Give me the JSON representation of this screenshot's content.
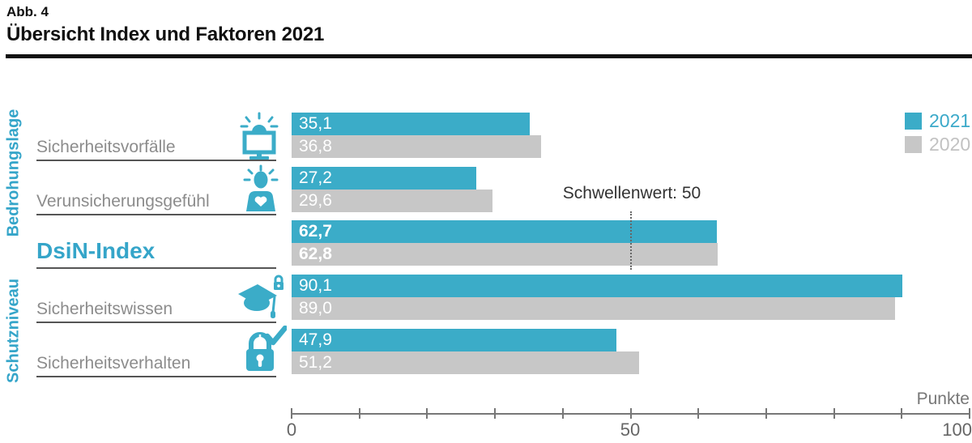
{
  "figure": {
    "number": "Abb. 4",
    "title": "Übersicht Index und Faktoren 2021"
  },
  "groups": {
    "top": "Bedrohungslage",
    "bottom": "Schutzniveau"
  },
  "threshold": {
    "label": "Schwellenwert: 50",
    "value": 50
  },
  "axis": {
    "min": 0,
    "max": 100,
    "tick_step": 10,
    "labels": {
      "start": "0",
      "mid": "50",
      "end": "100"
    },
    "unit": "Punkte"
  },
  "legend": {
    "position": "top-right",
    "items": [
      {
        "label": "2021",
        "color": "#3BACC8"
      },
      {
        "label": "2020",
        "color": "#C7C7C7"
      }
    ]
  },
  "icons": {
    "sicherheitsvorfaelle": "alarm-monitor-icon",
    "verunsicherungsgefuehl": "anxious-person-icon",
    "sicherheitswissen": "graduation-cap-lock-icon",
    "sicherheitsverhalten": "padlock-check-icon"
  },
  "colors": {
    "accent_teal": "#3BACC8",
    "bar_2020_gray": "#C7C7C7",
    "category_label_gray": "#8C8C8C",
    "axis_gray": "#777777",
    "header_rule": "#111111"
  },
  "chart_data": {
    "type": "bar",
    "orientation": "horizontal",
    "title": "Übersicht Index und Faktoren 2021",
    "categories": [
      "Sicherheitsvorfälle",
      "Verunsicherungsgefühl",
      "DsiN-Index",
      "Sicherheitswissen",
      "Sicherheitsverhalten"
    ],
    "series": [
      {
        "name": "2021",
        "color": "#3BACC8",
        "values": [
          35.1,
          27.2,
          62.7,
          90.1,
          47.9
        ]
      },
      {
        "name": "2020",
        "color": "#C7C7C7",
        "values": [
          36.8,
          29.6,
          62.8,
          89.0,
          51.2
        ]
      }
    ],
    "value_labels_inside_bars": true,
    "decimal_format": "comma",
    "emphasized_category": "DsiN-Index",
    "xlabel": "Punkte",
    "xlim": [
      0,
      100
    ],
    "tick_step": 10,
    "grid": false,
    "legend_position": "top-right",
    "annotations": [
      {
        "type": "vline",
        "x": 50,
        "label": "Schwellenwert: 50",
        "style": "dotted"
      }
    ]
  }
}
